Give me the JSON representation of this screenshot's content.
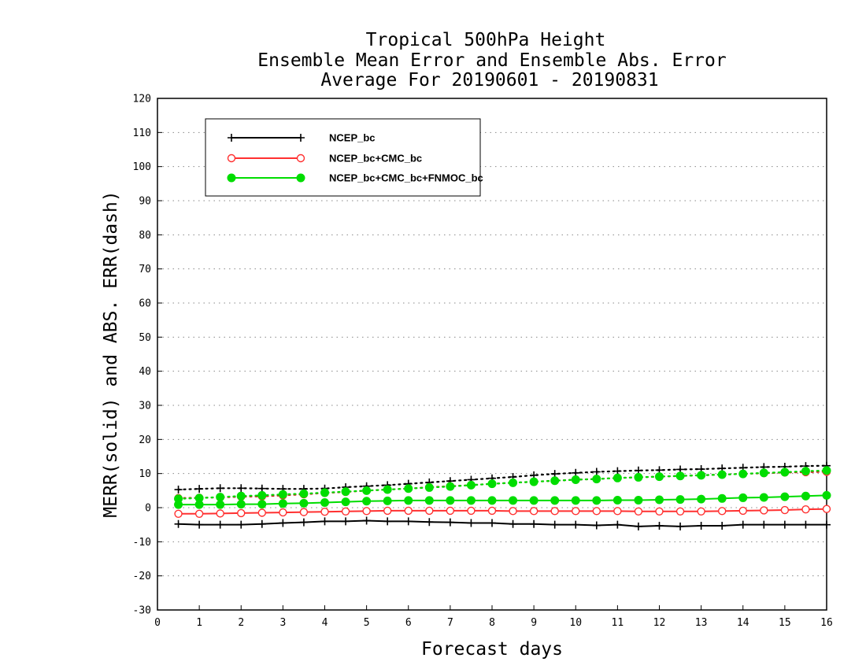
{
  "chart_data": {
    "type": "line",
    "title_lines": [
      "Tropical 500hPa Height",
      "Ensemble Mean Error and Ensemble Abs. Error",
      "Average For 20190601 - 20190831"
    ],
    "xlabel": "Forecast days",
    "ylabel": "MERR(solid) and ABS. ERR(dash)",
    "xlim": [
      0,
      16
    ],
    "ylim": [
      -30,
      120
    ],
    "x_ticks": [
      0,
      1,
      2,
      3,
      4,
      5,
      6,
      7,
      8,
      9,
      10,
      11,
      12,
      13,
      14,
      15,
      16
    ],
    "y_ticks": [
      -30,
      -20,
      -10,
      0,
      10,
      20,
      30,
      40,
      50,
      60,
      70,
      80,
      90,
      100,
      110,
      120
    ],
    "grid": "horizontal dotted",
    "legend_position": "top-left",
    "x": [
      0.5,
      1,
      1.5,
      2,
      2.5,
      3,
      3.5,
      4,
      4.5,
      5,
      5.5,
      6,
      6.5,
      7,
      7.5,
      8,
      8.5,
      9,
      9.5,
      10,
      10.5,
      11,
      11.5,
      12,
      12.5,
      13,
      13.5,
      14,
      14.5,
      15,
      15.5,
      16
    ],
    "series": [
      {
        "name": "NCEP_bc",
        "color": "#000000",
        "marker": "plus",
        "merr": [
          -4.8,
          -5.0,
          -5.0,
          -5.0,
          -4.8,
          -4.5,
          -4.3,
          -4.0,
          -4.0,
          -3.8,
          -4.0,
          -4.0,
          -4.2,
          -4.3,
          -4.5,
          -4.5,
          -4.8,
          -4.8,
          -5.0,
          -5.0,
          -5.2,
          -5.0,
          -5.5,
          -5.3,
          -5.5,
          -5.3,
          -5.3,
          -5.0,
          -5.0,
          -5.0,
          -5.0,
          -5.0
        ],
        "abs_err": [
          5.3,
          5.5,
          5.7,
          5.7,
          5.6,
          5.5,
          5.5,
          5.6,
          6.0,
          6.3,
          6.6,
          7.0,
          7.4,
          7.8,
          8.2,
          8.6,
          9.0,
          9.5,
          9.9,
          10.2,
          10.5,
          10.7,
          10.9,
          11.0,
          11.2,
          11.3,
          11.5,
          11.7,
          11.9,
          12.0,
          12.2,
          12.3
        ]
      },
      {
        "name": "NCEP_bc+CMC_bc",
        "color": "#ff3030",
        "marker": "open-circle",
        "merr": [
          -1.8,
          -1.8,
          -1.7,
          -1.6,
          -1.5,
          -1.4,
          -1.3,
          -1.2,
          -1.1,
          -1.0,
          -0.9,
          -0.9,
          -0.9,
          -0.9,
          -0.9,
          -0.9,
          -1.0,
          -1.0,
          -1.0,
          -1.0,
          -1.0,
          -1.0,
          -1.1,
          -1.1,
          -1.1,
          -1.1,
          -1.0,
          -0.9,
          -0.8,
          -0.7,
          -0.5,
          -0.4
        ],
        "abs_err": [
          2.8,
          2.9,
          3.0,
          3.2,
          3.3,
          3.6,
          3.9,
          4.3,
          4.6,
          5.0,
          5.3,
          5.6,
          6.0,
          6.3,
          6.6,
          7.0,
          7.3,
          7.6,
          7.9,
          8.2,
          8.4,
          8.7,
          8.9,
          9.1,
          9.3,
          9.5,
          9.7,
          9.9,
          10.1,
          10.3,
          10.4,
          10.5
        ]
      },
      {
        "name": "NCEP_bc+CMC_bc+FNMOC_bc",
        "color": "#00dd00",
        "marker": "filled-circle",
        "merr": [
          0.9,
          0.9,
          0.9,
          1.0,
          1.0,
          1.2,
          1.3,
          1.5,
          1.7,
          1.9,
          2.0,
          2.1,
          2.1,
          2.1,
          2.1,
          2.1,
          2.1,
          2.1,
          2.1,
          2.1,
          2.1,
          2.2,
          2.2,
          2.3,
          2.4,
          2.5,
          2.7,
          2.9,
          3.0,
          3.2,
          3.4,
          3.6
        ],
        "abs_err": [
          2.6,
          2.8,
          3.1,
          3.4,
          3.6,
          3.9,
          4.1,
          4.4,
          4.7,
          5.0,
          5.3,
          5.6,
          5.9,
          6.2,
          6.6,
          7.0,
          7.3,
          7.6,
          7.9,
          8.2,
          8.4,
          8.7,
          8.9,
          9.1,
          9.3,
          9.5,
          9.7,
          9.9,
          10.2,
          10.4,
          10.7,
          10.9
        ]
      }
    ]
  }
}
